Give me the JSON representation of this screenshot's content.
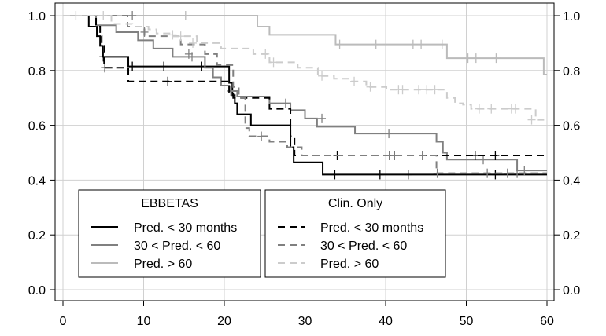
{
  "chart_data": {
    "type": "line",
    "subtype": "kaplan-meier step curves with censor ticks",
    "title": "",
    "xlabel": "",
    "ylabel": "",
    "xlim": [
      0,
      60
    ],
    "ylim": [
      0,
      1
    ],
    "x_ticks": [
      0,
      10,
      20,
      30,
      40,
      50,
      60
    ],
    "y_ticks": [
      0.0,
      0.2,
      0.4,
      0.6,
      0.8,
      1.0
    ],
    "x_tick_labels": [
      "0",
      "10",
      "20",
      "30",
      "40",
      "50",
      "60"
    ],
    "y_tick_labels": [
      "0.0",
      "0.2",
      "0.4",
      "0.6",
      "0.8",
      "1.0"
    ],
    "right_y_axis": true,
    "grid": true,
    "legends": [
      {
        "title": "EBBETAS",
        "placement": "bottom-left",
        "entries": [
          "Pred. < 30 months",
          "30 < Pred. < 60",
          "Pred. > 60"
        ]
      },
      {
        "title": "Clin. Only",
        "placement": "bottom-center",
        "entries": [
          "Pred. < 30 months",
          "30 < Pred. < 60",
          "Pred. > 60"
        ]
      }
    ],
    "series": [
      {
        "group": "EBBETAS",
        "label_ref": "Pred. < 30 months",
        "color": "#000000",
        "dash": "solid",
        "steps": [
          [
            0,
            1.0
          ],
          [
            3.2,
            0.96
          ],
          [
            4.2,
            0.925
          ],
          [
            4.6,
            0.89
          ],
          [
            4.9,
            0.85
          ],
          [
            8.1,
            0.815
          ],
          [
            20.6,
            0.755
          ],
          [
            21.0,
            0.71
          ],
          [
            21.3,
            0.68
          ],
          [
            21.6,
            0.64
          ],
          [
            23.3,
            0.6
          ],
          [
            28.2,
            0.52
          ],
          [
            28.6,
            0.465
          ],
          [
            32.2,
            0.42
          ],
          [
            60,
            0.42
          ]
        ],
        "censors": [
          [
            5.0,
            0.85
          ],
          [
            8.6,
            0.815
          ],
          [
            12.5,
            0.815
          ],
          [
            17.2,
            0.815
          ],
          [
            33.7,
            0.42
          ],
          [
            39.3,
            0.42
          ],
          [
            42.8,
            0.42
          ],
          [
            53.6,
            0.42
          ]
        ]
      },
      {
        "group": "EBBETAS",
        "label_ref": "30 < Pred. < 60",
        "color": "#808080",
        "dash": "solid",
        "steps": [
          [
            0,
            1.0
          ],
          [
            4.1,
            0.965
          ],
          [
            6.6,
            0.94
          ],
          [
            9.3,
            0.91
          ],
          [
            11.2,
            0.88
          ],
          [
            13.6,
            0.85
          ],
          [
            17.6,
            0.81
          ],
          [
            18.6,
            0.775
          ],
          [
            19.6,
            0.745
          ],
          [
            20.6,
            0.725
          ],
          [
            21.6,
            0.705
          ],
          [
            25.6,
            0.68
          ],
          [
            28.2,
            0.655
          ],
          [
            30.0,
            0.625
          ],
          [
            31.5,
            0.595
          ],
          [
            36.2,
            0.57
          ],
          [
            46.3,
            0.54
          ],
          [
            47.1,
            0.5
          ],
          [
            47.6,
            0.475
          ],
          [
            56.3,
            0.435
          ],
          [
            60,
            0.435
          ]
        ],
        "censors": [
          [
            10.1,
            0.94
          ],
          [
            16.0,
            0.85
          ],
          [
            20.8,
            0.725
          ],
          [
            27.6,
            0.68
          ],
          [
            32.1,
            0.625
          ],
          [
            40.4,
            0.57
          ],
          [
            52.1,
            0.475
          ],
          [
            57.2,
            0.435
          ]
        ]
      },
      {
        "group": "EBBETAS",
        "label_ref": "Pred. > 60",
        "color": "#bbbbbb",
        "dash": "solid",
        "steps": [
          [
            0,
            1.0
          ],
          [
            24.1,
            0.96
          ],
          [
            25.6,
            0.93
          ],
          [
            33.8,
            0.895
          ],
          [
            47.6,
            0.845
          ],
          [
            59.6,
            0.785
          ],
          [
            60,
            0.785
          ]
        ],
        "censors": [
          [
            1.6,
            1.0
          ],
          [
            15.2,
            1.0
          ],
          [
            34.3,
            0.895
          ],
          [
            38.8,
            0.895
          ],
          [
            43.4,
            0.895
          ],
          [
            44.4,
            0.895
          ],
          [
            47.0,
            0.895
          ],
          [
            50.2,
            0.845
          ],
          [
            51.2,
            0.845
          ],
          [
            53.7,
            0.845
          ]
        ]
      },
      {
        "group": "Clin. Only",
        "label_ref": "Pred. < 30 months",
        "color": "#000000",
        "dash": "dashed",
        "steps": [
          [
            0,
            1.0
          ],
          [
            4.1,
            0.96
          ],
          [
            4.6,
            0.925
          ],
          [
            4.8,
            0.89
          ],
          [
            5.1,
            0.81
          ],
          [
            8.1,
            0.76
          ],
          [
            20.6,
            0.72
          ],
          [
            21.1,
            0.7
          ],
          [
            25.6,
            0.66
          ],
          [
            28.2,
            0.56
          ],
          [
            28.7,
            0.49
          ],
          [
            60,
            0.49
          ]
        ],
        "censors": [
          [
            5.2,
            0.81
          ],
          [
            13.0,
            0.76
          ],
          [
            34.0,
            0.49
          ],
          [
            40.5,
            0.49
          ],
          [
            41.1,
            0.49
          ],
          [
            44.6,
            0.49
          ],
          [
            51.1,
            0.49
          ],
          [
            53.6,
            0.49
          ]
        ]
      },
      {
        "group": "Clin. Only",
        "label_ref": "30 < Pred. < 60",
        "color": "#808080",
        "dash": "dashed",
        "steps": [
          [
            0,
            1.0
          ],
          [
            8.0,
            0.96
          ],
          [
            10.1,
            0.925
          ],
          [
            14.6,
            0.895
          ],
          [
            17.6,
            0.86
          ],
          [
            19.1,
            0.82
          ],
          [
            21.1,
            0.74
          ],
          [
            21.8,
            0.7
          ],
          [
            22.6,
            0.59
          ],
          [
            23.1,
            0.56
          ],
          [
            25.6,
            0.54
          ],
          [
            27.8,
            0.52
          ],
          [
            29.6,
            0.49
          ],
          [
            46.3,
            0.425
          ],
          [
            60,
            0.425
          ]
        ],
        "censors": [
          [
            8.6,
            1.0
          ],
          [
            15.6,
            0.86
          ],
          [
            24.6,
            0.56
          ],
          [
            41.1,
            0.49
          ],
          [
            46.4,
            0.425
          ],
          [
            52.6,
            0.425
          ],
          [
            55.1,
            0.425
          ],
          [
            56.3,
            0.425
          ]
        ]
      },
      {
        "group": "Clin. Only",
        "label_ref": "Pred. > 60",
        "color": "#cccccc",
        "dash": "dashed",
        "steps": [
          [
            0,
            1.0
          ],
          [
            6.0,
            0.97
          ],
          [
            8.6,
            0.96
          ],
          [
            10.6,
            0.95
          ],
          [
            11.6,
            0.935
          ],
          [
            13.6,
            0.925
          ],
          [
            16.6,
            0.9
          ],
          [
            19.6,
            0.88
          ],
          [
            23.6,
            0.86
          ],
          [
            25.6,
            0.83
          ],
          [
            29.1,
            0.81
          ],
          [
            31.6,
            0.78
          ],
          [
            33.6,
            0.77
          ],
          [
            35.6,
            0.76
          ],
          [
            37.6,
            0.74
          ],
          [
            40.1,
            0.73
          ],
          [
            47.6,
            0.7
          ],
          [
            48.6,
            0.68
          ],
          [
            49.6,
            0.675
          ],
          [
            50.6,
            0.66
          ],
          [
            57.6,
            0.66
          ],
          [
            58.6,
            0.62
          ],
          [
            60,
            0.62
          ]
        ],
        "censors": [
          [
            5.0,
            1.0
          ],
          [
            13.6,
            0.93
          ],
          [
            14.6,
            0.925
          ],
          [
            16.1,
            0.9
          ],
          [
            25.1,
            0.86
          ],
          [
            26.1,
            0.83
          ],
          [
            32.1,
            0.78
          ],
          [
            36.1,
            0.76
          ],
          [
            38.1,
            0.74
          ],
          [
            41.6,
            0.73
          ],
          [
            42.1,
            0.73
          ],
          [
            44.1,
            0.73
          ],
          [
            45.1,
            0.73
          ],
          [
            46.1,
            0.73
          ],
          [
            51.6,
            0.66
          ],
          [
            53.1,
            0.66
          ],
          [
            55.6,
            0.66
          ],
          [
            56.1,
            0.66
          ],
          [
            58.1,
            0.62
          ]
        ]
      }
    ]
  }
}
